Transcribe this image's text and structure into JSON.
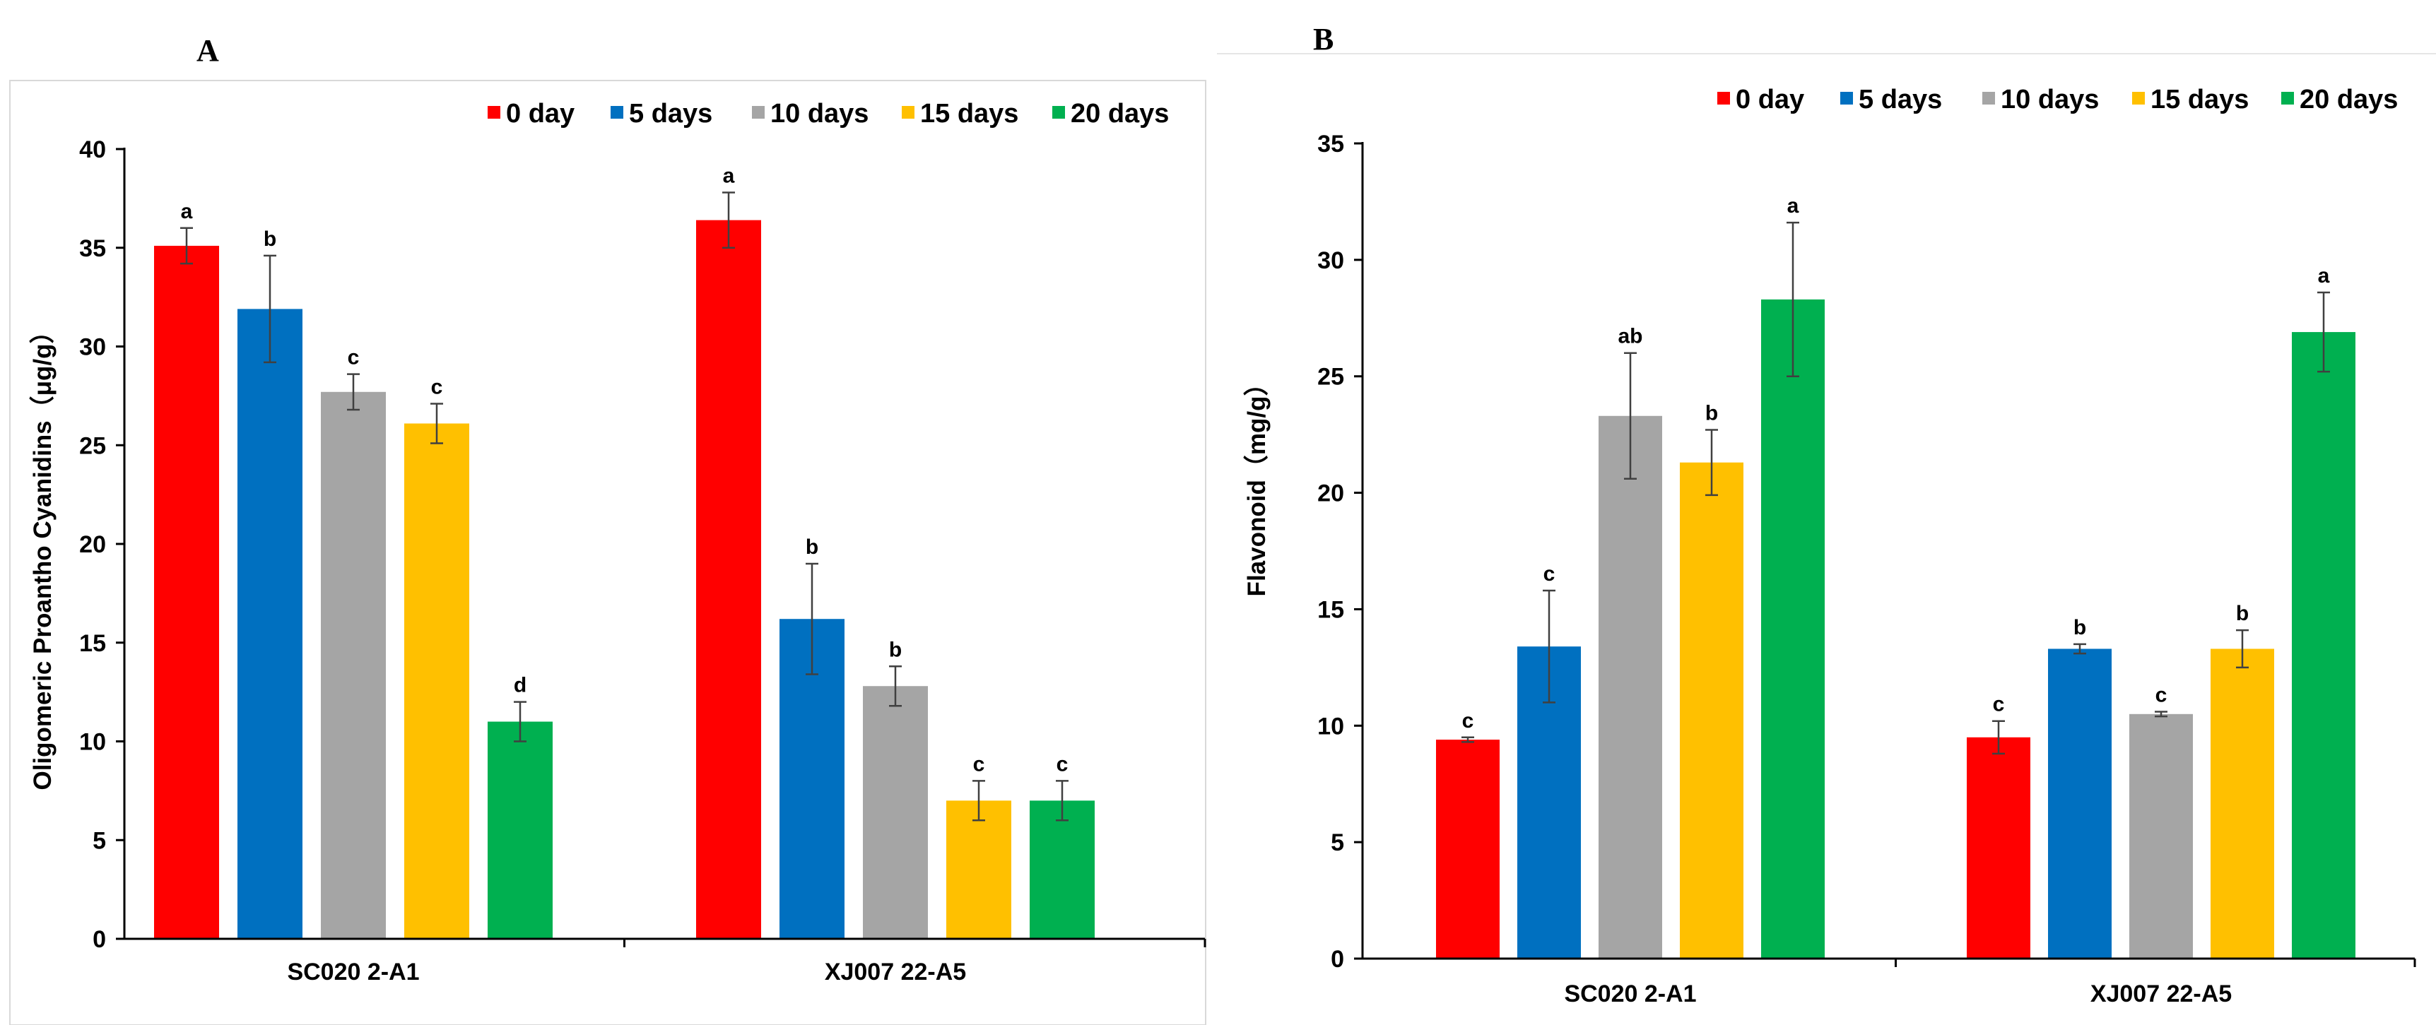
{
  "chart_data": [
    {
      "panel": "A",
      "type": "bar",
      "ylabel": "Oligomeric Proantho Cyanidins（μg/g）",
      "xlabel": "",
      "ylim": [
        0,
        40
      ],
      "yticks": [
        0,
        5,
        10,
        15,
        20,
        25,
        30,
        35,
        40
      ],
      "grid": false,
      "legend_position": "top-right",
      "categories": [
        "SC020 2-A1",
        "XJ007 22-A5"
      ],
      "series": [
        {
          "name": "0 day",
          "color": "#FF0000",
          "values": [
            35.1,
            36.4
          ],
          "errors": [
            0.9,
            1.4
          ],
          "letters": [
            "a",
            "a"
          ]
        },
        {
          "name": "5 days",
          "color": "#0070C0",
          "values": [
            31.9,
            16.2
          ],
          "errors": [
            2.7,
            2.8
          ],
          "letters": [
            "b",
            "b"
          ]
        },
        {
          "name": "10 days",
          "color": "#A5A5A5",
          "values": [
            27.7,
            12.8
          ],
          "errors": [
            0.9,
            1.0
          ],
          "letters": [
            "c",
            "b"
          ]
        },
        {
          "name": "15 days",
          "color": "#FFC000",
          "values": [
            26.1,
            7.0
          ],
          "errors": [
            1.0,
            1.0
          ],
          "letters": [
            "c",
            "c"
          ]
        },
        {
          "name": "20 days",
          "color": "#00B050",
          "values": [
            11.0,
            7.0
          ],
          "errors": [
            1.0,
            1.0
          ],
          "letters": [
            "d",
            "c"
          ]
        }
      ]
    },
    {
      "panel": "B",
      "type": "bar",
      "ylabel": "Flavonoid（mg/g）",
      "xlabel": "",
      "ylim": [
        0,
        35
      ],
      "yticks": [
        0,
        5,
        10,
        15,
        20,
        25,
        30,
        35
      ],
      "grid": false,
      "legend_position": "top-right",
      "categories": [
        "SC020 2-A1",
        "XJ007 22-A5"
      ],
      "series": [
        {
          "name": "0 day",
          "color": "#FF0000",
          "values": [
            9.4,
            9.5
          ],
          "errors": [
            0.1,
            0.7
          ],
          "letters": [
            "c",
            "c"
          ]
        },
        {
          "name": "5 days",
          "color": "#0070C0",
          "values": [
            13.4,
            13.3
          ],
          "errors": [
            2.4,
            0.2
          ],
          "letters": [
            "c",
            "b"
          ]
        },
        {
          "name": "10 days",
          "color": "#A5A5A5",
          "values": [
            23.3,
            10.5
          ],
          "errors": [
            2.7,
            0.1
          ],
          "letters": [
            "ab",
            "c"
          ]
        },
        {
          "name": "15 days",
          "color": "#FFC000",
          "values": [
            21.3,
            13.3
          ],
          "errors": [
            1.4,
            0.8
          ],
          "letters": [
            "b",
            "b"
          ]
        },
        {
          "name": "20 days",
          "color": "#00B050",
          "values": [
            28.3,
            26.9
          ],
          "errors": [
            3.3,
            1.7
          ],
          "letters": [
            "a",
            "a"
          ]
        }
      ]
    }
  ]
}
